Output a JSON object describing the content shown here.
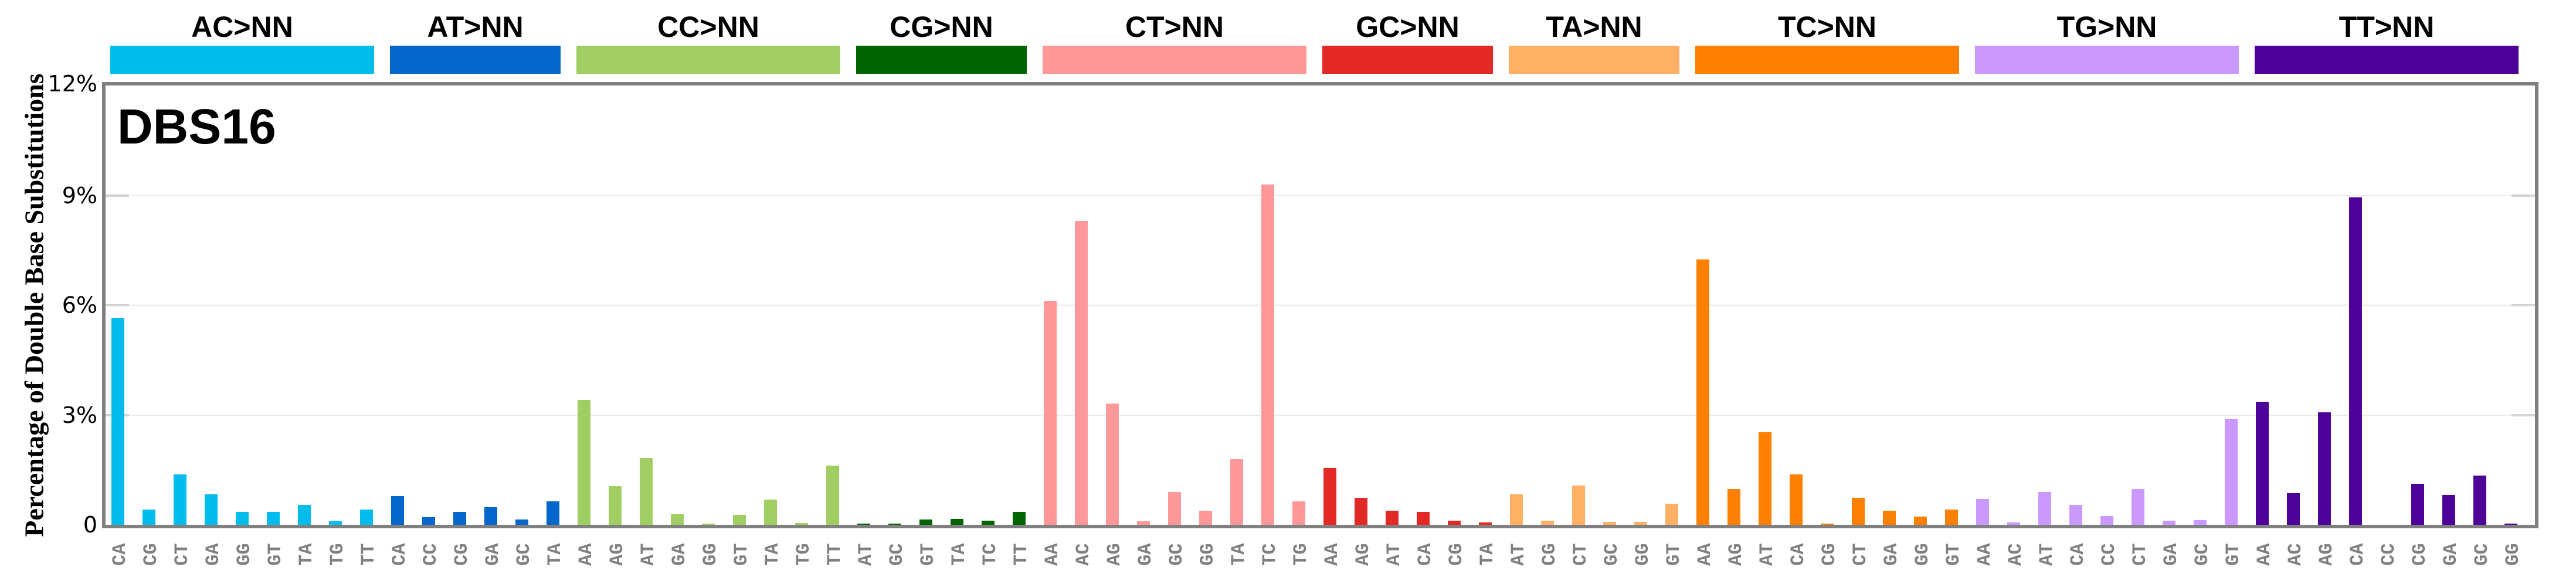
{
  "chart": {
    "title": "DBS16",
    "ylabel": "Percentage of Double Base Substitutions",
    "yticks": [
      {
        "label": "12%",
        "value": 12
      },
      {
        "label": "9%",
        "value": 9
      },
      {
        "label": "6%",
        "value": 6
      },
      {
        "label": "3%",
        "value": 3
      },
      {
        "label": "0",
        "value": 0
      }
    ]
  },
  "chart_data": {
    "type": "bar",
    "title": "DBS16",
    "xlabel": "",
    "ylabel": "Percentage of Double Base Substitutions",
    "ylim": [
      0,
      12
    ],
    "ytick_labels": [
      "0",
      "3%",
      "6%",
      "9%",
      "12%"
    ],
    "grid": true,
    "legend": "none (category header bars on top)",
    "groups": [
      {
        "name": "AC>NN",
        "color": "#03BCEE",
        "categories": [
          "CA",
          "CG",
          "CT",
          "GA",
          "GG",
          "GT",
          "TA",
          "TG",
          "TT"
        ],
        "values": [
          5.65,
          0.41,
          1.38,
          0.84,
          0.35,
          0.35,
          0.55,
          0.1,
          0.41
        ]
      },
      {
        "name": "AT>NN",
        "color": "#0266CA",
        "categories": [
          "CA",
          "CC",
          "CG",
          "GA",
          "GC",
          "TA"
        ],
        "values": [
          0.78,
          0.21,
          0.36,
          0.48,
          0.15,
          0.64
        ]
      },
      {
        "name": "CC>NN",
        "color": "#A1CE63",
        "categories": [
          "AA",
          "AG",
          "AT",
          "GA",
          "GG",
          "GT",
          "TA",
          "TG",
          "TT"
        ],
        "values": [
          3.41,
          1.06,
          1.83,
          0.29,
          0.02,
          0.27,
          0.69,
          0.05,
          1.61
        ]
      },
      {
        "name": "CG>NN",
        "color": "#006501",
        "categories": [
          "AT",
          "GC",
          "GT",
          "TA",
          "TC",
          "TT"
        ],
        "values": [
          0.02,
          0.02,
          0.15,
          0.16,
          0.11,
          0.35
        ]
      },
      {
        "name": "CT>NN",
        "color": "#FF9898",
        "categories": [
          "AA",
          "AC",
          "AG",
          "GA",
          "GC",
          "GG",
          "TA",
          "TC",
          "TG"
        ],
        "values": [
          6.12,
          8.31,
          3.31,
          0.1,
          0.89,
          0.39,
          1.79,
          9.3,
          0.64
        ]
      },
      {
        "name": "GC>NN",
        "color": "#E22925",
        "categories": [
          "AA",
          "AG",
          "AT",
          "CA",
          "CG",
          "TA"
        ],
        "values": [
          1.56,
          0.74,
          0.39,
          0.36,
          0.11,
          0.07
        ]
      },
      {
        "name": "TA>NN",
        "color": "#FEB065",
        "categories": [
          "AT",
          "CG",
          "CT",
          "GC",
          "GG",
          "GT"
        ],
        "values": [
          0.84,
          0.11,
          1.07,
          0.08,
          0.08,
          0.57
        ]
      },
      {
        "name": "TC>NN",
        "color": "#FD8000",
        "categories": [
          "AA",
          "AG",
          "AT",
          "CA",
          "CG",
          "CT",
          "GA",
          "GG",
          "GT"
        ],
        "values": [
          7.25,
          0.98,
          2.53,
          1.38,
          0.03,
          0.74,
          0.39,
          0.22,
          0.41
        ]
      },
      {
        "name": "TG>NN",
        "color": "#CB98FD",
        "categories": [
          "AA",
          "AC",
          "AT",
          "CA",
          "CC",
          "CT",
          "GA",
          "GC",
          "GT"
        ],
        "values": [
          0.71,
          0.07,
          0.89,
          0.54,
          0.24,
          0.98,
          0.11,
          0.13,
          2.9
        ]
      },
      {
        "name": "TT>NN",
        "color": "#4C0199",
        "categories": [
          "AA",
          "AC",
          "AG",
          "CA",
          "CC",
          "CG",
          "GA",
          "GC",
          "GG"
        ],
        "values": [
          3.36,
          0.86,
          3.07,
          8.95,
          0.0,
          1.12,
          0.82,
          1.34,
          0.03
        ]
      }
    ]
  },
  "colors": {
    "axis": "#808080",
    "grid": "#ececec",
    "xlabel": "#808080"
  }
}
